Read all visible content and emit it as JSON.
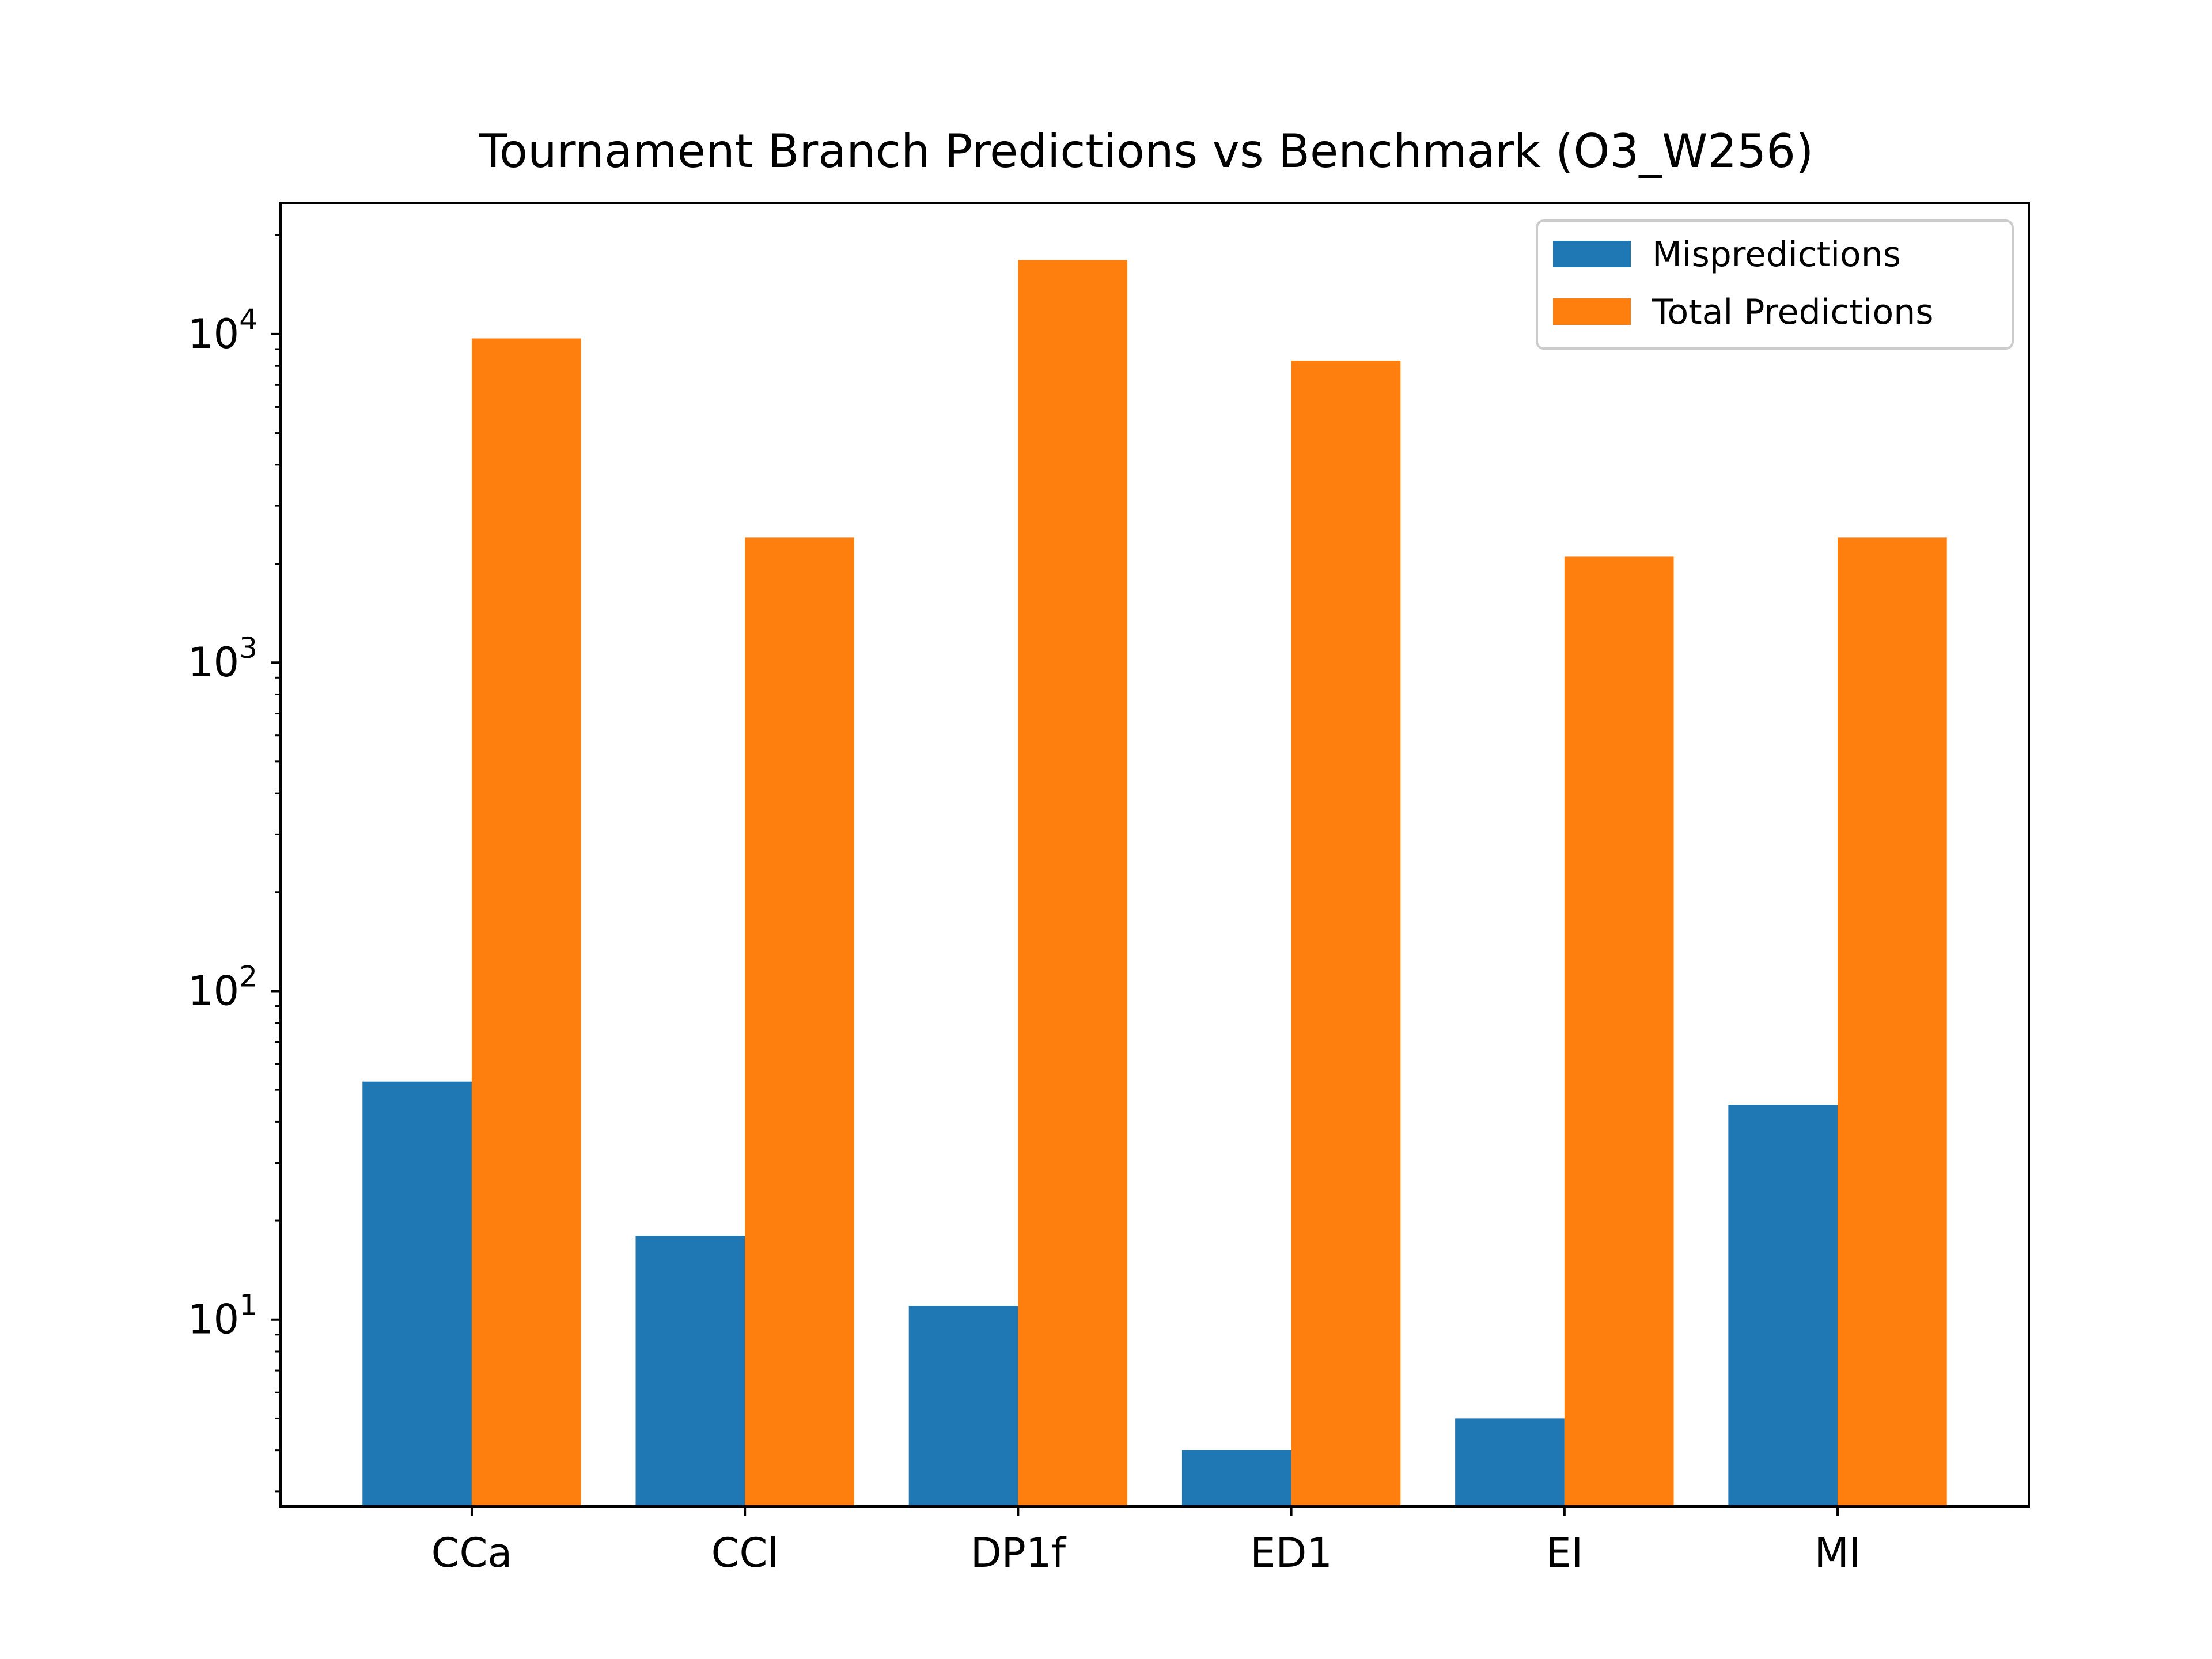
{
  "chart_data": {
    "type": "bar",
    "title": "Tournament Branch Predictions vs Benchmark (O3_W256)",
    "xlabel": "",
    "ylabel": "",
    "yscale": "log",
    "ylim": [
      2.7,
      25000
    ],
    "grid": false,
    "legend_position": "top-right",
    "categories": [
      "CCa",
      "CCl",
      "DP1f",
      "ED1",
      "EI",
      "MI"
    ],
    "series": [
      {
        "name": "Mispredictions",
        "color": "#1f77b4",
        "values": [
          53,
          18,
          11,
          4,
          5,
          45
        ]
      },
      {
        "name": "Total Predictions",
        "color": "#ff7f0e",
        "values": [
          9700,
          2400,
          16800,
          8300,
          2100,
          2400
        ]
      }
    ],
    "y_ticks": [
      {
        "value": 10,
        "base": "10",
        "exp": "1"
      },
      {
        "value": 100,
        "base": "10",
        "exp": "2"
      },
      {
        "value": 1000,
        "base": "10",
        "exp": "3"
      },
      {
        "value": 10000,
        "base": "10",
        "exp": "4"
      }
    ]
  }
}
